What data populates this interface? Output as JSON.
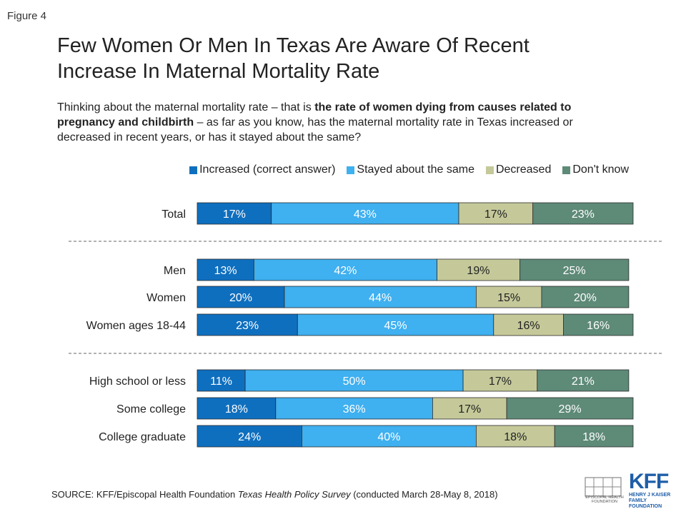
{
  "figure_label": "Figure 4",
  "title_line1": "Few Women Or Men In Texas Are Aware Of Recent",
  "title_line2": "Increase In Maternal Mortality Rate",
  "subtitle": {
    "part1": "Thinking about the maternal mortality rate – that is ",
    "bold": "the rate of women dying from causes related to pregnancy and childbirth",
    "part2": " – as far as you know, has the maternal mortality rate in Texas increased or decreased in recent years, or has it stayed about the same?"
  },
  "colors": {
    "increased": "#0f6fbf",
    "stayed": "#3fb0f0",
    "decreased": "#c5c99a",
    "dont_know": "#5e8a78"
  },
  "chart_data": {
    "type": "bar",
    "orientation": "horizontal",
    "stacked": true,
    "categories": [
      "Total",
      "Men",
      "Women",
      "Women ages 18-44",
      "High school or less",
      "Some college",
      "College graduate"
    ],
    "series": [
      {
        "name": "Increased (correct answer)",
        "values": [
          17,
          13,
          20,
          23,
          11,
          18,
          24
        ]
      },
      {
        "name": "Stayed about the same",
        "values": [
          43,
          42,
          44,
          45,
          50,
          36,
          40
        ]
      },
      {
        "name": "Decreased",
        "values": [
          17,
          19,
          15,
          16,
          17,
          17,
          18
        ]
      },
      {
        "name": "Don't know",
        "values": [
          23,
          25,
          20,
          16,
          21,
          29,
          18
        ]
      }
    ],
    "unit": "%",
    "legend_position": "top-right",
    "group_separators": "dashed"
  },
  "source": {
    "prefix": "SOURCE: KFF/Episcopal Health Foundation ",
    "italic": "Texas Health Policy Survey",
    "suffix": " (conducted March 28-May 8, 2018)"
  },
  "logos": {
    "ehf_text": "EPISCOPAL HEALTH FOUNDATION",
    "kff_word": "KFF",
    "kff_sub1": "HENRY J KAISER",
    "kff_sub2": "FAMILY FOUNDATION"
  }
}
